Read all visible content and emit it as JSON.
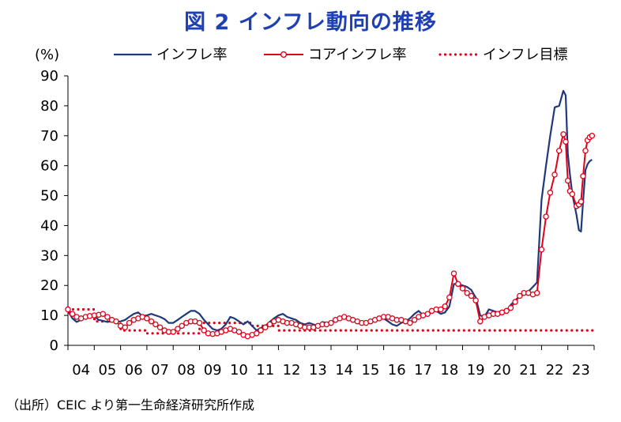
{
  "chart_data": {
    "type": "line",
    "title": "図 2  インフレ動向の推移",
    "ylabel": "(%)",
    "xlabel": "",
    "ylim": [
      0,
      90
    ],
    "yticks": [
      0,
      10,
      20,
      30,
      40,
      50,
      60,
      70,
      80,
      90
    ],
    "x_tick_labels": [
      "04",
      "05",
      "06",
      "07",
      "08",
      "09",
      "10",
      "11",
      "12",
      "13",
      "14",
      "15",
      "16",
      "17",
      "18",
      "19",
      "20",
      "21",
      "22",
      "23"
    ],
    "x_range": [
      2004,
      2024
    ],
    "grid": false,
    "legend_position": "top",
    "series": [
      {
        "name": "インフレ率",
        "color": "#1f3a7a",
        "style": "solid",
        "points": [
          [
            2004.0,
            11.5
          ],
          [
            2004.17,
            9.0
          ],
          [
            2004.33,
            7.8
          ],
          [
            2004.5,
            8.5
          ],
          [
            2004.67,
            9.8
          ],
          [
            2004.83,
            9.5
          ],
          [
            2005.0,
            9.8
          ],
          [
            2005.17,
            8.5
          ],
          [
            2005.33,
            8.2
          ],
          [
            2005.5,
            7.8
          ],
          [
            2005.67,
            8.0
          ],
          [
            2005.83,
            7.8
          ],
          [
            2006.0,
            8.0
          ],
          [
            2006.17,
            8.5
          ],
          [
            2006.33,
            9.5
          ],
          [
            2006.5,
            10.5
          ],
          [
            2006.67,
            11.0
          ],
          [
            2006.83,
            9.8
          ],
          [
            2007.0,
            10.0
          ],
          [
            2007.17,
            10.5
          ],
          [
            2007.33,
            10.0
          ],
          [
            2007.5,
            9.5
          ],
          [
            2007.67,
            8.8
          ],
          [
            2007.83,
            7.5
          ],
          [
            2008.0,
            7.5
          ],
          [
            2008.17,
            8.5
          ],
          [
            2008.33,
            9.5
          ],
          [
            2008.5,
            10.5
          ],
          [
            2008.67,
            11.5
          ],
          [
            2008.83,
            11.5
          ],
          [
            2009.0,
            10.5
          ],
          [
            2009.17,
            8.5
          ],
          [
            2009.33,
            7.0
          ],
          [
            2009.5,
            5.5
          ],
          [
            2009.67,
            5.0
          ],
          [
            2009.83,
            5.5
          ],
          [
            2010.0,
            7.0
          ],
          [
            2010.17,
            9.5
          ],
          [
            2010.33,
            9.0
          ],
          [
            2010.5,
            8.0
          ],
          [
            2010.67,
            7.0
          ],
          [
            2010.83,
            8.0
          ],
          [
            2011.0,
            6.5
          ],
          [
            2011.17,
            5.0
          ],
          [
            2011.33,
            5.8
          ],
          [
            2011.5,
            6.5
          ],
          [
            2011.67,
            7.8
          ],
          [
            2011.83,
            9.0
          ],
          [
            2012.0,
            10.0
          ],
          [
            2012.17,
            10.5
          ],
          [
            2012.33,
            9.5
          ],
          [
            2012.5,
            9.0
          ],
          [
            2012.67,
            8.5
          ],
          [
            2012.83,
            7.5
          ],
          [
            2013.0,
            7.0
          ],
          [
            2013.17,
            7.5
          ],
          [
            2013.33,
            7.0
          ],
          [
            2013.5,
            6.5
          ],
          [
            2013.67,
            7.8
          ],
          [
            2013.83,
            7.5
          ],
          [
            2014.0,
            7.8
          ],
          [
            2014.17,
            8.5
          ],
          [
            2014.33,
            9.0
          ],
          [
            2014.5,
            9.2
          ],
          [
            2014.67,
            9.0
          ],
          [
            2014.83,
            8.5
          ],
          [
            2015.0,
            7.5
          ],
          [
            2015.17,
            7.0
          ],
          [
            2015.33,
            7.5
          ],
          [
            2015.5,
            8.0
          ],
          [
            2015.67,
            8.5
          ],
          [
            2015.83,
            8.8
          ],
          [
            2016.0,
            9.0
          ],
          [
            2016.17,
            8.0
          ],
          [
            2016.33,
            7.0
          ],
          [
            2016.5,
            6.5
          ],
          [
            2016.67,
            7.5
          ],
          [
            2016.83,
            8.0
          ],
          [
            2017.0,
            9.0
          ],
          [
            2017.17,
            10.5
          ],
          [
            2017.33,
            11.5
          ],
          [
            2017.5,
            10.0
          ],
          [
            2017.67,
            10.5
          ],
          [
            2017.83,
            12.0
          ],
          [
            2018.0,
            11.5
          ],
          [
            2018.17,
            10.5
          ],
          [
            2018.33,
            11.0
          ],
          [
            2018.5,
            13.0
          ],
          [
            2018.67,
            20.5
          ],
          [
            2018.83,
            20.5
          ],
          [
            2019.0,
            20.0
          ],
          [
            2019.17,
            19.5
          ],
          [
            2019.33,
            18.5
          ],
          [
            2019.5,
            16.0
          ],
          [
            2019.67,
            10.0
          ],
          [
            2019.83,
            9.5
          ],
          [
            2020.0,
            12.0
          ],
          [
            2020.17,
            11.5
          ],
          [
            2020.33,
            11.0
          ],
          [
            2020.5,
            11.5
          ],
          [
            2020.67,
            11.5
          ],
          [
            2020.83,
            13.5
          ],
          [
            2021.0,
            15.0
          ],
          [
            2021.17,
            16.5
          ],
          [
            2021.33,
            17.0
          ],
          [
            2021.5,
            18.0
          ],
          [
            2021.67,
            19.5
          ],
          [
            2021.83,
            21.0
          ],
          [
            2022.0,
            48.5
          ],
          [
            2022.17,
            60.0
          ],
          [
            2022.33,
            70.0
          ],
          [
            2022.5,
            79.5
          ],
          [
            2022.67,
            80.0
          ],
          [
            2022.83,
            85.0
          ],
          [
            2022.92,
            83.5
          ],
          [
            2023.0,
            64.0
          ],
          [
            2023.08,
            57.0
          ],
          [
            2023.17,
            50.5
          ],
          [
            2023.33,
            43.5
          ],
          [
            2023.42,
            38.5
          ],
          [
            2023.5,
            38.0
          ],
          [
            2023.58,
            48.0
          ],
          [
            2023.67,
            58.5
          ],
          [
            2023.75,
            60.5
          ],
          [
            2023.83,
            61.5
          ],
          [
            2023.92,
            62.0
          ]
        ]
      },
      {
        "name": "コアインフレ率",
        "color": "#e2001a",
        "style": "solid-with-markers",
        "points": [
          [
            2004.0,
            12.0
          ],
          [
            2004.17,
            10.5
          ],
          [
            2004.33,
            9.5
          ],
          [
            2004.5,
            9.0
          ],
          [
            2004.67,
            9.5
          ],
          [
            2004.83,
            9.8
          ],
          [
            2005.0,
            10.0
          ],
          [
            2005.17,
            10.2
          ],
          [
            2005.33,
            10.5
          ],
          [
            2005.5,
            9.5
          ],
          [
            2005.67,
            8.5
          ],
          [
            2005.83,
            8.0
          ],
          [
            2006.0,
            6.5
          ],
          [
            2006.17,
            6.0
          ],
          [
            2006.33,
            7.5
          ],
          [
            2006.5,
            8.5
          ],
          [
            2006.67,
            9.0
          ],
          [
            2006.83,
            9.5
          ],
          [
            2007.0,
            9.0
          ],
          [
            2007.17,
            8.0
          ],
          [
            2007.33,
            7.0
          ],
          [
            2007.5,
            6.0
          ],
          [
            2007.67,
            5.0
          ],
          [
            2007.83,
            4.5
          ],
          [
            2008.0,
            4.5
          ],
          [
            2008.17,
            5.5
          ],
          [
            2008.33,
            6.5
          ],
          [
            2008.5,
            7.5
          ],
          [
            2008.67,
            8.0
          ],
          [
            2008.83,
            8.0
          ],
          [
            2009.0,
            7.5
          ],
          [
            2009.17,
            5.0
          ],
          [
            2009.33,
            4.0
          ],
          [
            2009.5,
            3.8
          ],
          [
            2009.67,
            4.0
          ],
          [
            2009.83,
            4.5
          ],
          [
            2010.0,
            5.0
          ],
          [
            2010.17,
            5.5
          ],
          [
            2010.33,
            5.0
          ],
          [
            2010.5,
            4.5
          ],
          [
            2010.67,
            3.5
          ],
          [
            2010.83,
            3.0
          ],
          [
            2011.0,
            3.5
          ],
          [
            2011.17,
            4.0
          ],
          [
            2011.33,
            5.0
          ],
          [
            2011.5,
            6.0
          ],
          [
            2011.67,
            7.0
          ],
          [
            2011.83,
            8.0
          ],
          [
            2012.0,
            8.5
          ],
          [
            2012.17,
            8.0
          ],
          [
            2012.33,
            7.5
          ],
          [
            2012.5,
            7.5
          ],
          [
            2012.67,
            7.0
          ],
          [
            2012.83,
            6.5
          ],
          [
            2013.0,
            6.0
          ],
          [
            2013.17,
            6.0
          ],
          [
            2013.33,
            6.0
          ],
          [
            2013.5,
            6.5
          ],
          [
            2013.67,
            7.0
          ],
          [
            2013.83,
            7.0
          ],
          [
            2014.0,
            7.5
          ],
          [
            2014.17,
            8.5
          ],
          [
            2014.33,
            9.0
          ],
          [
            2014.5,
            9.5
          ],
          [
            2014.67,
            9.0
          ],
          [
            2014.83,
            8.5
          ],
          [
            2015.0,
            8.0
          ],
          [
            2015.17,
            7.5
          ],
          [
            2015.33,
            7.5
          ],
          [
            2015.5,
            8.0
          ],
          [
            2015.67,
            8.5
          ],
          [
            2015.83,
            9.0
          ],
          [
            2016.0,
            9.5
          ],
          [
            2016.17,
            9.5
          ],
          [
            2016.33,
            9.0
          ],
          [
            2016.5,
            8.5
          ],
          [
            2016.67,
            8.5
          ],
          [
            2016.83,
            8.0
          ],
          [
            2017.0,
            7.5
          ],
          [
            2017.17,
            8.5
          ],
          [
            2017.33,
            9.5
          ],
          [
            2017.5,
            10.0
          ],
          [
            2017.67,
            10.5
          ],
          [
            2017.83,
            11.5
          ],
          [
            2018.0,
            12.0
          ],
          [
            2018.17,
            12.0
          ],
          [
            2018.33,
            13.0
          ],
          [
            2018.5,
            16.0
          ],
          [
            2018.67,
            24.0
          ],
          [
            2018.83,
            20.5
          ],
          [
            2019.0,
            19.0
          ],
          [
            2019.17,
            17.5
          ],
          [
            2019.33,
            16.5
          ],
          [
            2019.5,
            15.0
          ],
          [
            2019.67,
            8.0
          ],
          [
            2019.83,
            9.5
          ],
          [
            2020.0,
            10.0
          ],
          [
            2020.17,
            10.5
          ],
          [
            2020.33,
            10.5
          ],
          [
            2020.5,
            11.0
          ],
          [
            2020.67,
            11.5
          ],
          [
            2020.83,
            12.5
          ],
          [
            2021.0,
            14.5
          ],
          [
            2021.17,
            16.5
          ],
          [
            2021.33,
            17.5
          ],
          [
            2021.5,
            17.5
          ],
          [
            2021.67,
            17.0
          ],
          [
            2021.83,
            17.5
          ],
          [
            2022.0,
            32.0
          ],
          [
            2022.17,
            43.0
          ],
          [
            2022.33,
            51.0
          ],
          [
            2022.5,
            57.0
          ],
          [
            2022.67,
            65.0
          ],
          [
            2022.83,
            70.5
          ],
          [
            2022.92,
            68.0
          ],
          [
            2023.0,
            55.0
          ],
          [
            2023.08,
            51.5
          ],
          [
            2023.17,
            50.5
          ],
          [
            2023.33,
            46.5
          ],
          [
            2023.42,
            47.0
          ],
          [
            2023.5,
            48.0
          ],
          [
            2023.58,
            56.5
          ],
          [
            2023.67,
            65.0
          ],
          [
            2023.75,
            68.5
          ],
          [
            2023.83,
            69.5
          ],
          [
            2023.92,
            70.0
          ]
        ]
      },
      {
        "name": "インフレ目標",
        "color": "#e2001a",
        "style": "dotted",
        "points": [
          [
            2004.0,
            12.0
          ],
          [
            2005.0,
            12.0
          ],
          [
            2005.01,
            8.0
          ],
          [
            2006.0,
            8.0
          ],
          [
            2006.01,
            5.0
          ],
          [
            2007.0,
            5.0
          ],
          [
            2007.01,
            4.0
          ],
          [
            2009.0,
            4.0
          ],
          [
            2009.01,
            7.5
          ],
          [
            2011.0,
            7.5
          ],
          [
            2011.01,
            6.5
          ],
          [
            2012.0,
            6.5
          ],
          [
            2012.01,
            5.0
          ],
          [
            2024.0,
            5.0
          ]
        ]
      }
    ]
  },
  "labels": {
    "title": "図 2  インフレ動向の推移",
    "unit": "(%)",
    "source": "（出所）CEIC より第一生命経済研究所作成"
  }
}
